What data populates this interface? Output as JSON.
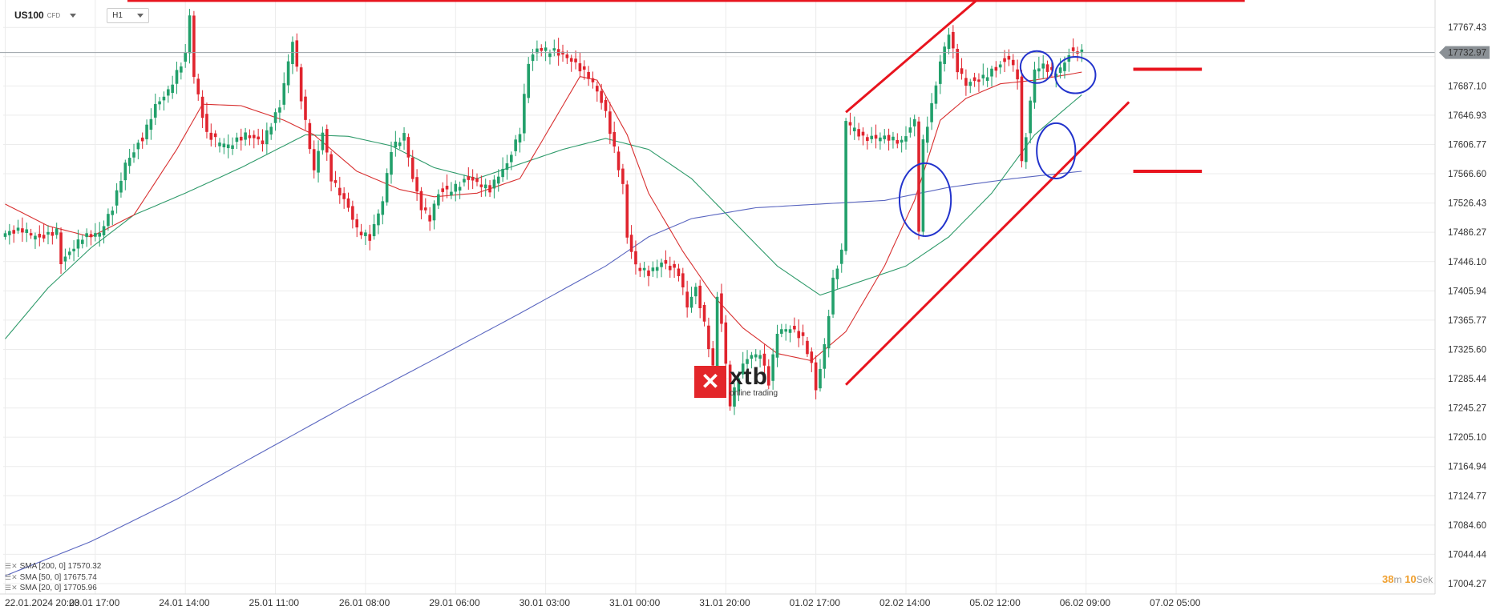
{
  "toolbar": {
    "symbol": "US100",
    "symbol_type": "CFD",
    "timeframe": "H1"
  },
  "colors": {
    "bull": "#22a06b",
    "bear": "#e0242e",
    "sma20": "#d83030",
    "sma50": "#2e9a6a",
    "sma200": "#5a66c0",
    "annotation_red": "#e8141e",
    "annotation_blue": "#2233cc",
    "current_price_bg": "#8a9095"
  },
  "logo": {
    "mark": "✕",
    "name": "xtb",
    "tagline": "online trading"
  },
  "timer": {
    "minutes": "38",
    "minutes_unit": "m",
    "seconds": "10",
    "seconds_unit": "Sek"
  },
  "legend": [
    {
      "label": "SMA [200, 0] 17570.32"
    },
    {
      "label": "SMA [50, 0] 17675.74"
    },
    {
      "label": "SMA [20, 0] 17705.96"
    }
  ],
  "current_price": "17732.97",
  "chart_data": {
    "type": "candlestick",
    "symbol": "US100",
    "timeframe": "H1",
    "ylim": [
      16990,
      17805
    ],
    "y_ticks": [
      17767.43,
      17727.27,
      17687.1,
      17646.93,
      17606.77,
      17566.6,
      17526.43,
      17486.27,
      17446.1,
      17405.94,
      17365.77,
      17325.6,
      17285.44,
      17245.27,
      17205.1,
      17164.94,
      17124.77,
      17084.6,
      17044.44,
      17004.27
    ],
    "y_tick_labels": [
      "17767.43",
      "",
      "17687.10",
      "17646.93",
      "17606.77",
      "17566.60",
      "17526.43",
      "17486.27",
      "17446.10",
      "17405.94",
      "17365.77",
      "17325.60",
      "17285.44",
      "17245.27",
      "17205.10",
      "17164.94",
      "17124.77",
      "17084.60",
      "17044.44",
      "17004.27"
    ],
    "x_labels": [
      "22.01.2024 20:00",
      "23.01 17:00",
      "24.01 14:00",
      "25.01 11:00",
      "26.01 08:00",
      "29.01 06:00",
      "30.01 03:00",
      "31.01 00:00",
      "31.01 20:00",
      "01.02 17:00",
      "02.02 14:00",
      "05.02 12:00",
      "06.02 09:00",
      "07.02 05:00"
    ],
    "x_label_index": [
      0,
      21,
      42,
      63,
      84,
      105,
      126,
      147,
      168,
      189,
      210,
      231,
      252,
      273
    ],
    "anchors": [
      [
        0,
        17485
      ],
      [
        4,
        17490
      ],
      [
        8,
        17478
      ],
      [
        12,
        17488
      ],
      [
        13,
        17445
      ],
      [
        18,
        17480
      ],
      [
        22,
        17485
      ],
      [
        25,
        17520
      ],
      [
        28,
        17580
      ],
      [
        32,
        17615
      ],
      [
        35,
        17660
      ],
      [
        38,
        17680
      ],
      [
        42,
        17730
      ],
      [
        43,
        17785
      ],
      [
        44,
        17700
      ],
      [
        47,
        17620
      ],
      [
        52,
        17605
      ],
      [
        56,
        17620
      ],
      [
        60,
        17610
      ],
      [
        64,
        17660
      ],
      [
        67,
        17750
      ],
      [
        69,
        17670
      ],
      [
        72,
        17570
      ],
      [
        74,
        17625
      ],
      [
        76,
        17560
      ],
      [
        80,
        17520
      ],
      [
        82,
        17490
      ],
      [
        85,
        17478
      ],
      [
        88,
        17530
      ],
      [
        90,
        17600
      ],
      [
        93,
        17620
      ],
      [
        95,
        17560
      ],
      [
        97,
        17520
      ],
      [
        99,
        17505
      ],
      [
        101,
        17540
      ],
      [
        104,
        17545
      ],
      [
        108,
        17560
      ],
      [
        113,
        17545
      ],
      [
        115,
        17565
      ],
      [
        117,
        17580
      ],
      [
        120,
        17625
      ],
      [
        122,
        17720
      ],
      [
        124,
        17738
      ],
      [
        128,
        17735
      ],
      [
        132,
        17722
      ],
      [
        136,
        17700
      ],
      [
        138,
        17680
      ],
      [
        140,
        17650
      ],
      [
        142,
        17600
      ],
      [
        144,
        17550
      ],
      [
        145,
        17480
      ],
      [
        147,
        17440
      ],
      [
        150,
        17430
      ],
      [
        153,
        17445
      ],
      [
        157,
        17430
      ],
      [
        159,
        17385
      ],
      [
        161,
        17410
      ],
      [
        163,
        17360
      ],
      [
        165,
        17300
      ],
      [
        166,
        17400
      ],
      [
        167,
        17360
      ],
      [
        169,
        17250
      ],
      [
        171,
        17290
      ],
      [
        173,
        17315
      ],
      [
        176,
        17320
      ],
      [
        178,
        17280
      ],
      [
        180,
        17350
      ],
      [
        183,
        17355
      ],
      [
        186,
        17340
      ],
      [
        188,
        17305
      ],
      [
        189,
        17270
      ],
      [
        191,
        17330
      ],
      [
        193,
        17420
      ],
      [
        195,
        17460
      ],
      [
        196,
        17640
      ],
      [
        200,
        17615
      ],
      [
        205,
        17617
      ],
      [
        209,
        17610
      ],
      [
        212,
        17640
      ],
      [
        213,
        17490
      ],
      [
        214,
        17610
      ],
      [
        216,
        17660
      ],
      [
        218,
        17720
      ],
      [
        220,
        17760
      ],
      [
        222,
        17710
      ],
      [
        224,
        17690
      ],
      [
        227,
        17695
      ],
      [
        232,
        17715
      ],
      [
        234,
        17725
      ],
      [
        236,
        17700
      ],
      [
        237,
        17580
      ],
      [
        238,
        17620
      ],
      [
        240,
        17710
      ],
      [
        242,
        17715
      ],
      [
        244,
        17705
      ],
      [
        246,
        17710
      ],
      [
        248,
        17730
      ],
      [
        250,
        17735
      ],
      [
        251,
        17733
      ]
    ],
    "sma_anchors": {
      "sma200": [
        [
          0,
          17015
        ],
        [
          20,
          17062
        ],
        [
          40,
          17120
        ],
        [
          60,
          17185
        ],
        [
          80,
          17250
        ],
        [
          100,
          17312
        ],
        [
          120,
          17375
        ],
        [
          140,
          17440
        ],
        [
          150,
          17480
        ],
        [
          160,
          17505
        ],
        [
          175,
          17520
        ],
        [
          190,
          17525
        ],
        [
          205,
          17530
        ],
        [
          220,
          17548
        ],
        [
          235,
          17560
        ],
        [
          251,
          17570
        ]
      ],
      "sma50": [
        [
          0,
          17340
        ],
        [
          10,
          17410
        ],
        [
          20,
          17465
        ],
        [
          30,
          17510
        ],
        [
          42,
          17540
        ],
        [
          55,
          17575
        ],
        [
          70,
          17620
        ],
        [
          80,
          17618
        ],
        [
          90,
          17605
        ],
        [
          100,
          17575
        ],
        [
          110,
          17560
        ],
        [
          120,
          17580
        ],
        [
          130,
          17600
        ],
        [
          140,
          17615
        ],
        [
          150,
          17600
        ],
        [
          160,
          17560
        ],
        [
          170,
          17500
        ],
        [
          180,
          17440
        ],
        [
          190,
          17400
        ],
        [
          200,
          17420
        ],
        [
          210,
          17440
        ],
        [
          220,
          17480
        ],
        [
          230,
          17540
        ],
        [
          240,
          17620
        ],
        [
          251,
          17675
        ]
      ],
      "sma20": [
        [
          0,
          17525
        ],
        [
          10,
          17495
        ],
        [
          20,
          17480
        ],
        [
          30,
          17510
        ],
        [
          40,
          17600
        ],
        [
          46,
          17662
        ],
        [
          55,
          17660
        ],
        [
          65,
          17640
        ],
        [
          72,
          17620
        ],
        [
          82,
          17570
        ],
        [
          92,
          17545
        ],
        [
          100,
          17535
        ],
        [
          110,
          17540
        ],
        [
          120,
          17560
        ],
        [
          128,
          17640
        ],
        [
          134,
          17700
        ],
        [
          138,
          17695
        ],
        [
          145,
          17620
        ],
        [
          150,
          17540
        ],
        [
          158,
          17460
        ],
        [
          165,
          17400
        ],
        [
          172,
          17355
        ],
        [
          180,
          17320
        ],
        [
          188,
          17310
        ],
        [
          196,
          17350
        ],
        [
          205,
          17440
        ],
        [
          212,
          17530
        ],
        [
          218,
          17640
        ],
        [
          224,
          17670
        ],
        [
          232,
          17690
        ],
        [
          240,
          17695
        ],
        [
          251,
          17706
        ]
      ]
    },
    "series": [
      {
        "name": "SMA [200, 0]",
        "last": 17570.32
      },
      {
        "name": "SMA [50, 0]",
        "last": 17675.74
      },
      {
        "name": "SMA [20, 0]",
        "last": 17705.96
      }
    ],
    "annotations": {
      "resistance_line": {
        "x0": 28.5,
        "x1": 289,
        "y": 17804
      },
      "channel_upper": {
        "x0": 196,
        "y0": 17651,
        "x1": 233.5,
        "y1": 17840
      },
      "channel_lower": {
        "x0": 196,
        "y0": 17277,
        "x1": 262,
        "y1": 17665
      },
      "levels": [
        {
          "x0": 263,
          "x1": 279,
          "y": 17710
        },
        {
          "x0": 263,
          "x1": 279,
          "y": 17570
        }
      ],
      "ellipses": [
        {
          "cx": 214.5,
          "cy": 17531,
          "rx": 6,
          "ry": 50
        },
        {
          "cx": 240.5,
          "cy": 17713,
          "rx": 3.8,
          "ry": 22
        },
        {
          "cx": 245,
          "cy": 17598,
          "rx": 4.5,
          "ry": 38
        },
        {
          "cx": 249.5,
          "cy": 17702,
          "rx": 4.7,
          "ry": 25
        }
      ]
    }
  }
}
